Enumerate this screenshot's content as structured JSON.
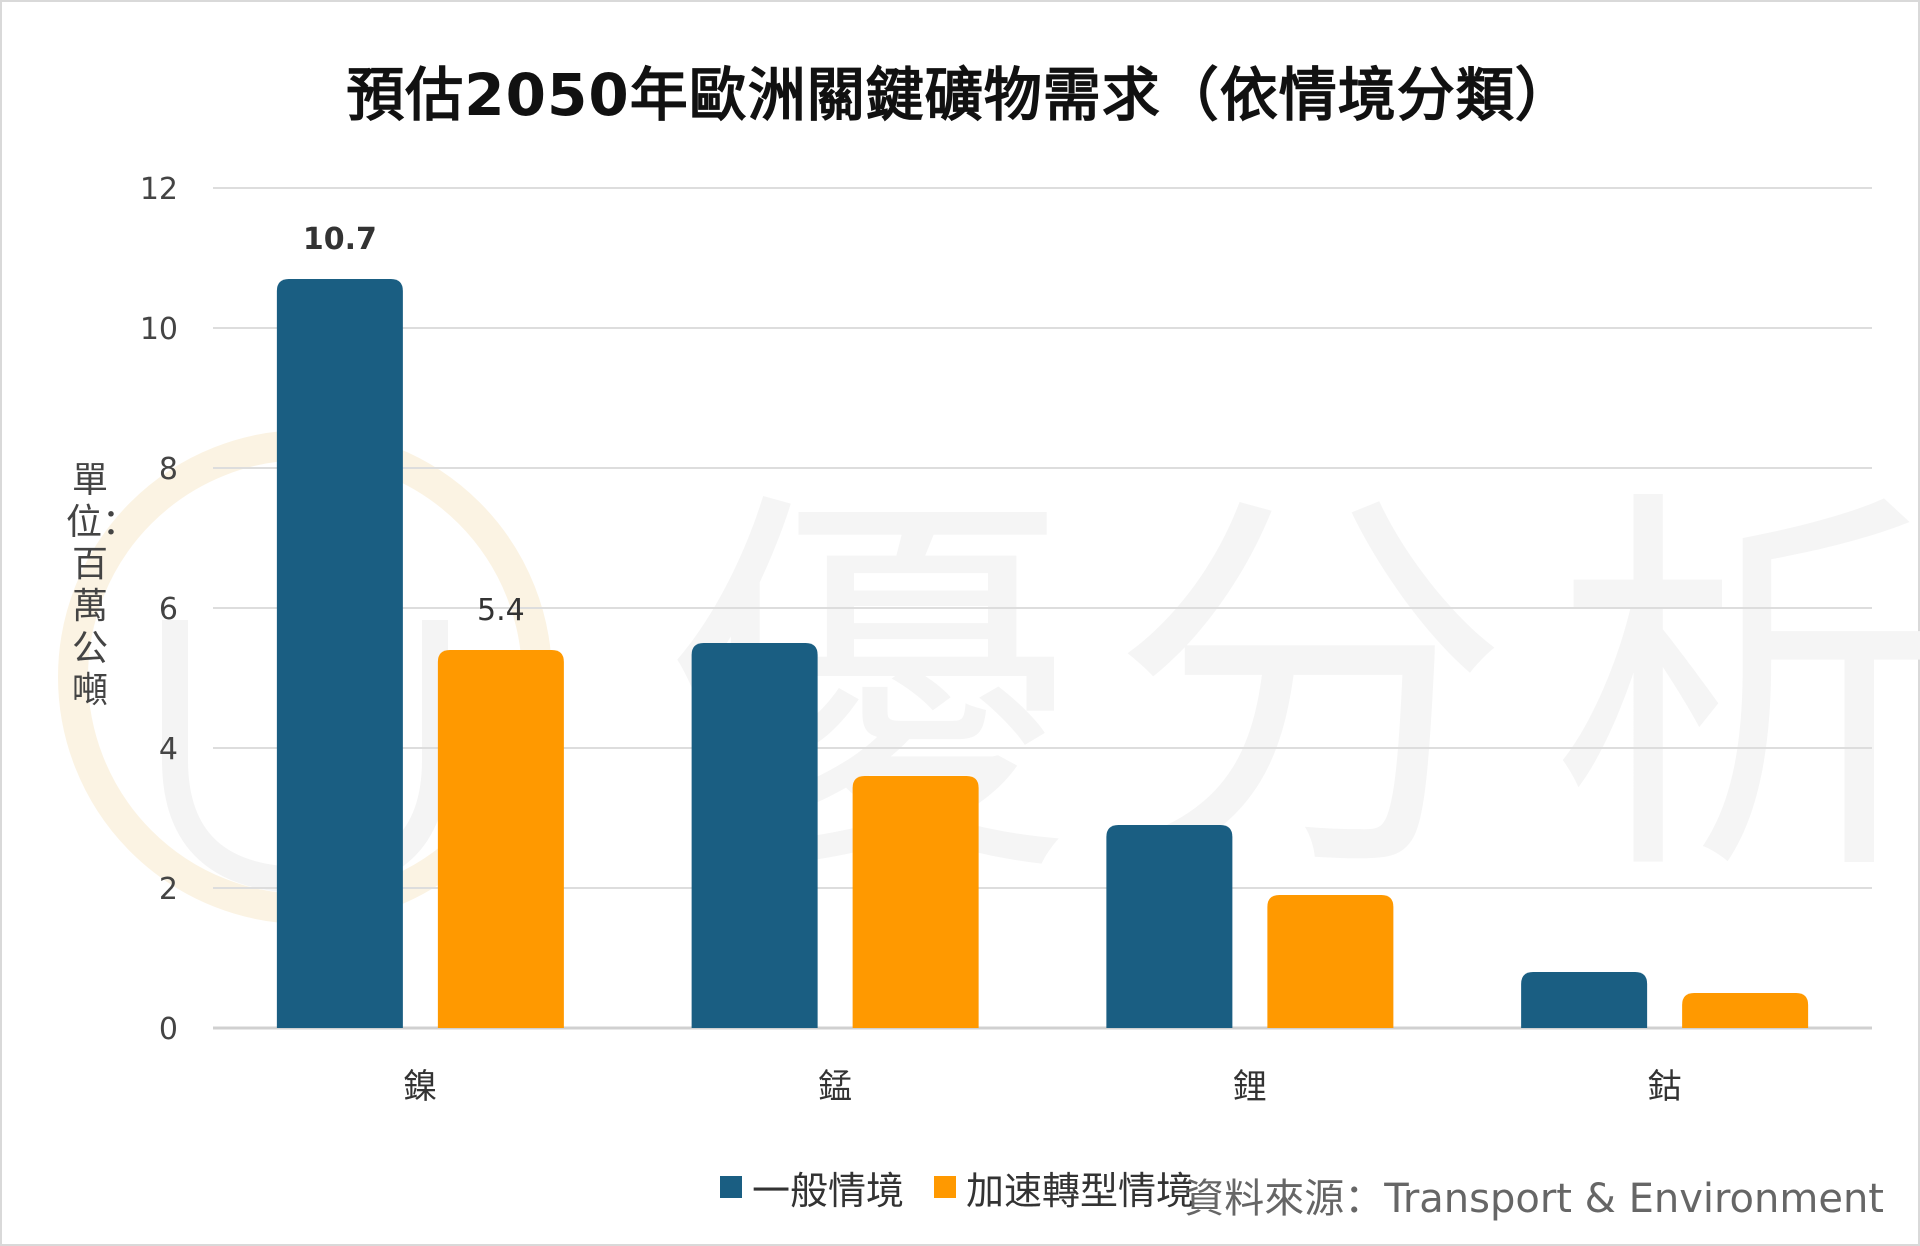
{
  "chart_data": {
    "type": "bar",
    "title": "預估2050年歐洲關鍵礦物需求（依情境分類）",
    "ylabel": "單位：百萬公噸",
    "xlabel": "",
    "categories": [
      "鎳",
      "錳",
      "鋰",
      "鈷"
    ],
    "series": [
      {
        "name": "一般情境",
        "color": "#1a5e82",
        "values": [
          10.7,
          5.5,
          2.9,
          0.8
        ]
      },
      {
        "name": "加速轉型情境",
        "color": "#ff9900",
        "values": [
          5.4,
          3.6,
          1.9,
          0.5
        ]
      }
    ],
    "data_labels": [
      {
        "series": 0,
        "category": 0,
        "text": "10.7",
        "bold": true
      },
      {
        "series": 1,
        "category": 0,
        "text": "5.4",
        "bold": false
      }
    ],
    "ylim": [
      0,
      12
    ],
    "yticks": [
      "0",
      "2",
      "4",
      "6",
      "8",
      "10",
      "12"
    ],
    "grid": true,
    "legend_position": "bottom"
  },
  "source": "資料來源：Transport & Environment",
  "watermark": {
    "text": "優分析",
    "color": "#f5f5f5"
  }
}
